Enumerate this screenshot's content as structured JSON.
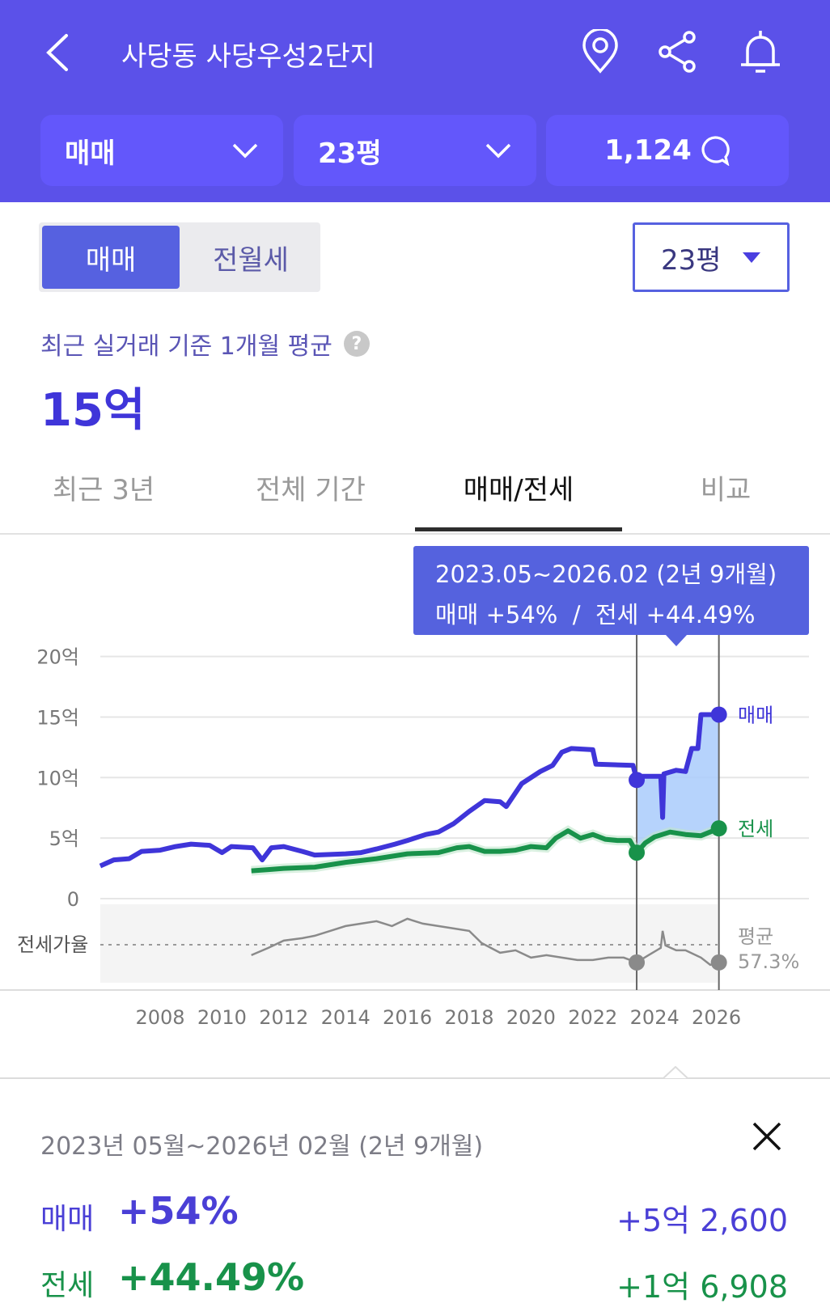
{
  "header": {
    "title": "사당동 사당우성2단지",
    "icons": [
      "back-icon",
      "location-pin-icon",
      "share-icon",
      "bell-icon"
    ],
    "filters": [
      {
        "label": "매매",
        "icon": "chevron-down-icon"
      },
      {
        "label": "23평",
        "icon": "chevron-down-icon"
      },
      {
        "label": "1,124",
        "icon": "comment-icon"
      }
    ]
  },
  "segment": {
    "active": "매매",
    "inactive": "전월세"
  },
  "size_select": {
    "value": "23평"
  },
  "summary": {
    "subtitle": "최근 실거래 기준 1개월 평균",
    "help": "?",
    "value": "15억"
  },
  "tabs": [
    {
      "label": "최근 3년",
      "active": false
    },
    {
      "label": "전체 기간",
      "active": false
    },
    {
      "label": "매매/전세",
      "active": true
    },
    {
      "label": "비교",
      "active": false
    }
  ],
  "tooltip": {
    "range": "2023.05~2026.02 (2년 9개월)",
    "sale": "매매 +54%",
    "sep": "/",
    "jeonse": "전세 +44.49%"
  },
  "colors": {
    "brand": "#5b51e9",
    "sale": "#3f35d9",
    "jeonse": "#18924a",
    "ratio": "#8a8a8a",
    "selection": "#a9cbfb"
  },
  "chart_data": {
    "type": "line",
    "ylabel": "",
    "yticks": [
      "20억",
      "15억",
      "10억",
      "5억",
      "0"
    ],
    "ytick_values": [
      20,
      15,
      10,
      5,
      0
    ],
    "ylim": [
      0,
      20
    ],
    "xticks": [
      "2008",
      "2010",
      "2012",
      "2014",
      "2016",
      "2018",
      "2020",
      "2022",
      "2024",
      "2026"
    ],
    "xlim": [
      2006,
      2026.1
    ],
    "selection": {
      "start": 2023.42,
      "end": 2026.08
    },
    "series": [
      {
        "name": "매매",
        "label": "매매",
        "points": [
          [
            2006.06,
            2.7
          ],
          [
            2006.5,
            3.2
          ],
          [
            2007,
            3.3
          ],
          [
            2007.4,
            3.9
          ],
          [
            2008,
            4.0
          ],
          [
            2008.5,
            4.3
          ],
          [
            2009,
            4.5
          ],
          [
            2009.6,
            4.4
          ],
          [
            2010,
            3.8
          ],
          [
            2010.3,
            4.3
          ],
          [
            2011,
            4.2
          ],
          [
            2011.3,
            3.2
          ],
          [
            2011.6,
            4.2
          ],
          [
            2012,
            4.3
          ],
          [
            2012.6,
            3.9
          ],
          [
            2013,
            3.6
          ],
          [
            2014,
            3.7
          ],
          [
            2014.5,
            3.8
          ],
          [
            2015,
            4.1
          ],
          [
            2015.6,
            4.5
          ],
          [
            2016,
            4.8
          ],
          [
            2016.6,
            5.3
          ],
          [
            2017,
            5.5
          ],
          [
            2017.5,
            6.2
          ],
          [
            2018,
            7.2
          ],
          [
            2018.5,
            8.1
          ],
          [
            2019,
            8.0
          ],
          [
            2019.2,
            7.6
          ],
          [
            2019.7,
            9.5
          ],
          [
            2020.3,
            10.5
          ],
          [
            2020.7,
            11.0
          ],
          [
            2021,
            12.1
          ],
          [
            2021.3,
            12.4
          ],
          [
            2022,
            12.3
          ],
          [
            2022.1,
            11.1
          ],
          [
            2023.3,
            11.0
          ],
          [
            2023.42,
            9.8
          ],
          [
            2023.6,
            10.1
          ],
          [
            2024.2,
            10.1
          ],
          [
            2024.26,
            6.7
          ],
          [
            2024.3,
            10.3
          ],
          [
            2024.7,
            10.6
          ],
          [
            2025,
            10.5
          ],
          [
            2025.2,
            12.4
          ],
          [
            2025.4,
            12.4
          ],
          [
            2025.5,
            15.2
          ],
          [
            2026.08,
            15.2
          ]
        ]
      },
      {
        "name": "전세",
        "label": "전세",
        "points": [
          [
            2010.95,
            2.3
          ],
          [
            2011.5,
            2.4
          ],
          [
            2012,
            2.5
          ],
          [
            2013,
            2.6
          ],
          [
            2013.5,
            2.8
          ],
          [
            2014,
            3.0
          ],
          [
            2015,
            3.3
          ],
          [
            2015.5,
            3.5
          ],
          [
            2016,
            3.7
          ],
          [
            2017,
            3.8
          ],
          [
            2017.6,
            4.2
          ],
          [
            2018,
            4.3
          ],
          [
            2018.5,
            3.9
          ],
          [
            2019,
            3.9
          ],
          [
            2019.5,
            4.0
          ],
          [
            2020,
            4.3
          ],
          [
            2020.5,
            4.2
          ],
          [
            2020.8,
            5.0
          ],
          [
            2021.2,
            5.6
          ],
          [
            2021.6,
            5.0
          ],
          [
            2022,
            5.3
          ],
          [
            2022.4,
            4.9
          ],
          [
            2022.8,
            4.8
          ],
          [
            2023.2,
            4.8
          ],
          [
            2023.42,
            3.8
          ],
          [
            2023.7,
            4.6
          ],
          [
            2024,
            5.1
          ],
          [
            2024.5,
            5.5
          ],
          [
            2025,
            5.3
          ],
          [
            2025.5,
            5.2
          ],
          [
            2026.08,
            5.8
          ]
        ]
      },
      {
        "name": "전세가율",
        "label": "전세가율",
        "average_label": "평균",
        "average": "57.3%",
        "average_value": 57.3,
        "points": [
          [
            2010.95,
            53
          ],
          [
            2011.5,
            56
          ],
          [
            2012,
            59
          ],
          [
            2012.6,
            60
          ],
          [
            2013,
            61
          ],
          [
            2013.5,
            63
          ],
          [
            2014,
            65
          ],
          [
            2014.5,
            66
          ],
          [
            2015,
            67
          ],
          [
            2015.5,
            65
          ],
          [
            2016,
            68
          ],
          [
            2016.5,
            66
          ],
          [
            2017,
            65
          ],
          [
            2017.5,
            64
          ],
          [
            2018,
            63
          ],
          [
            2018.4,
            58
          ],
          [
            2019,
            54
          ],
          [
            2019.5,
            55
          ],
          [
            2020,
            52
          ],
          [
            2020.5,
            53
          ],
          [
            2021,
            52
          ],
          [
            2021.5,
            51
          ],
          [
            2022,
            51
          ],
          [
            2022.5,
            52
          ],
          [
            2023,
            52
          ],
          [
            2023.42,
            50
          ],
          [
            2023.8,
            53
          ],
          [
            2024.2,
            56
          ],
          [
            2024.26,
            63
          ],
          [
            2024.35,
            57
          ],
          [
            2024.7,
            55
          ],
          [
            2025,
            55
          ],
          [
            2025.5,
            52
          ],
          [
            2025.8,
            49
          ],
          [
            2026.08,
            50
          ]
        ]
      }
    ]
  },
  "detail": {
    "range": "2023년 05월~2026년 02월 (2년 9개월)",
    "close_icon": "close-icon",
    "rows": [
      {
        "label": "매매",
        "pct": "+54%",
        "amount": "+5억 2,600"
      },
      {
        "label": "전세",
        "pct": "+44.49%",
        "amount": "+1억 6,908"
      }
    ]
  }
}
